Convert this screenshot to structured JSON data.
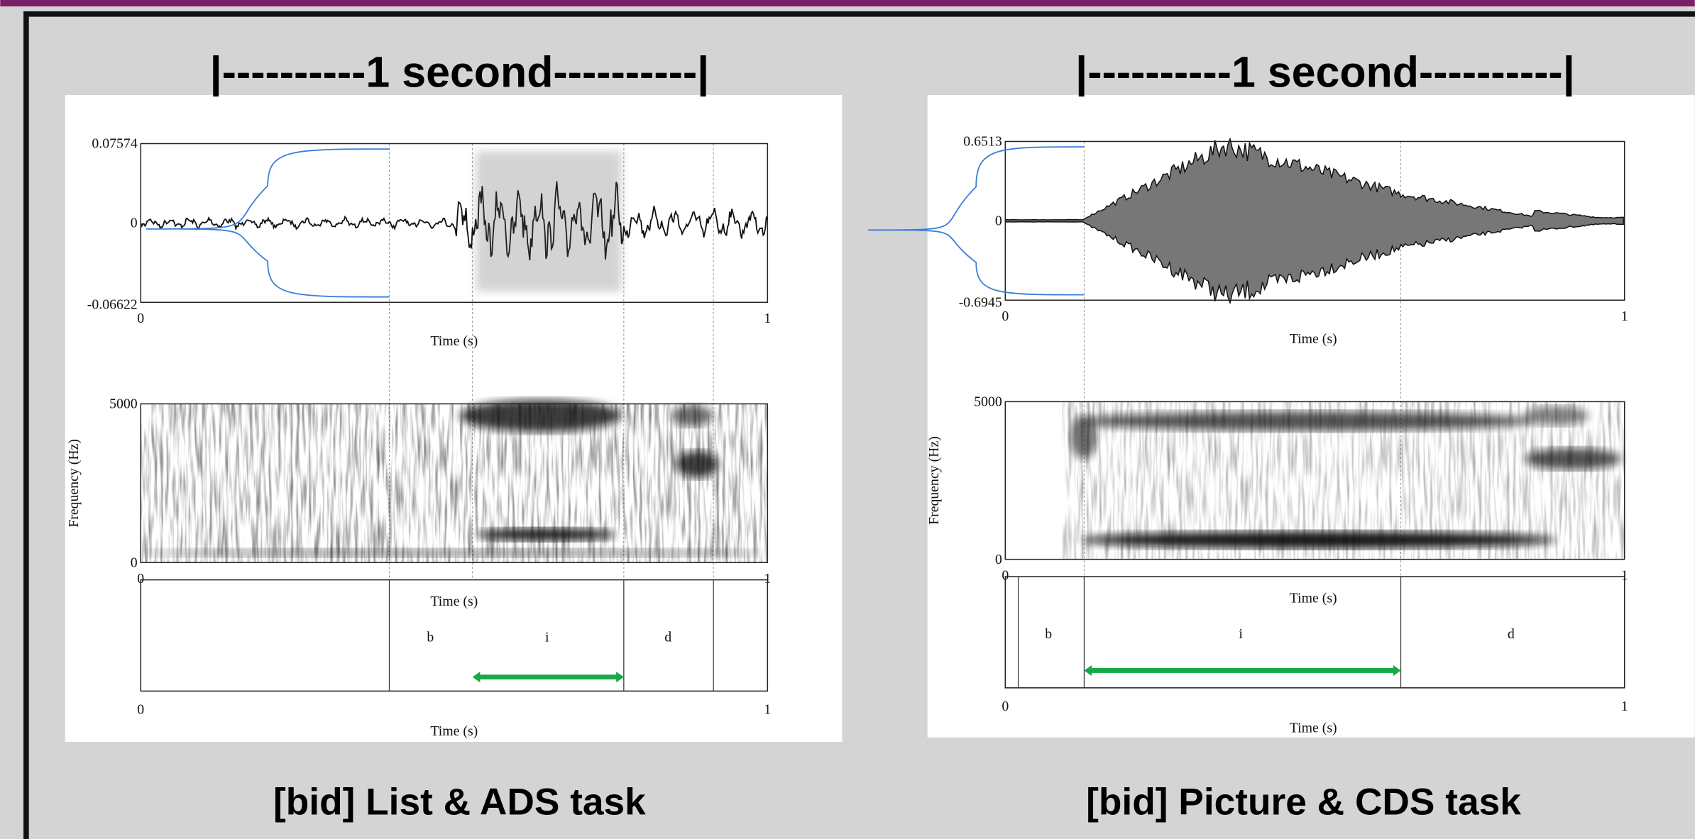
{
  "panels": [
    {
      "header": "|----------1 second----------|",
      "caption": "[bid] List & ADS task",
      "waveform": {
        "y_max": "0.07574",
        "y_zero": "0",
        "y_min": "-0.06622",
        "x_start": "0",
        "x_end": "1",
        "x_label": "Time (s)"
      },
      "spectrogram": {
        "y_max": "5000",
        "y_min": "0",
        "y_label": "Frequency (Hz)",
        "x_start": "0",
        "x_end": "1",
        "x_label": "Time (s)"
      },
      "textgrid": {
        "segments": [
          "b",
          "i",
          "d"
        ],
        "x_start": "0",
        "x_end": "1",
        "x_label": "Time (s)"
      }
    },
    {
      "header": "|----------1 second----------|",
      "caption": "[bid] Picture & CDS task",
      "waveform": {
        "y_max": "0.6513",
        "y_zero": "0",
        "y_min": "-0.6945",
        "x_start": "0",
        "x_end": "1",
        "x_label": "Time (s)"
      },
      "spectrogram": {
        "y_max": "5000",
        "y_min": "0",
        "y_label": "Frequency (Hz)",
        "x_start": "0",
        "x_end": "1",
        "x_label": "Time (s)"
      },
      "textgrid": {
        "segments": [
          "b",
          "i",
          "d"
        ],
        "x_start": "0",
        "x_end": "1",
        "x_label": "Time (s)"
      }
    }
  ]
}
